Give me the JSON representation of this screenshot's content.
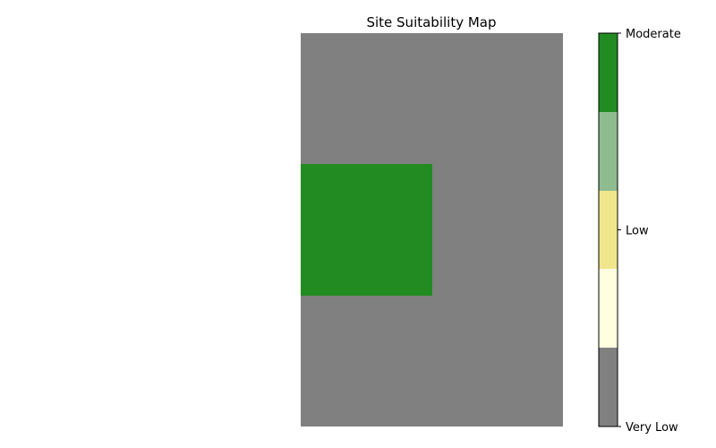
{
  "chart_data": {
    "type": "heatmap",
    "title": "Site Suitability Map",
    "xlabel": "",
    "ylabel": "",
    "grid": false,
    "rows": 3,
    "cols": 2,
    "cells": [
      [
        0,
        0
      ],
      [
        4,
        0
      ],
      [
        0,
        0
      ]
    ],
    "colorbar": {
      "position": "right",
      "classes": [
        {
          "value": 0,
          "color": "#808080"
        },
        {
          "value": 1,
          "color": "#ffffe0"
        },
        {
          "value": 2,
          "color": "#f0e68c"
        },
        {
          "value": 3,
          "color": "#8fbc8f"
        },
        {
          "value": 4,
          "color": "#228b22"
        }
      ],
      "range": [
        0,
        4
      ],
      "ticks": [
        {
          "value": 0,
          "label": "Very Low"
        },
        {
          "value": 2,
          "label": "Low"
        },
        {
          "value": 4,
          "label": "Moderate"
        }
      ]
    }
  }
}
